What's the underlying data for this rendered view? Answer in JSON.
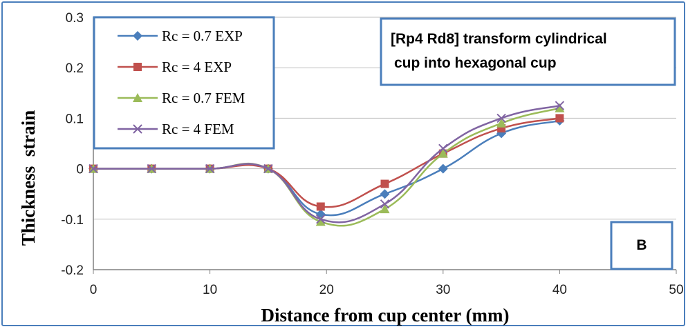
{
  "chart_data": {
    "type": "line",
    "title": "",
    "xlabel": "Distance from cup center (mm)",
    "ylabel": "Thickness  strain",
    "xlim": [
      0,
      50
    ],
    "ylim": [
      -0.2,
      0.3
    ],
    "xticks": [
      "0",
      "10",
      "20",
      "30",
      "40",
      "50"
    ],
    "yticks": [
      "-0.2",
      "-0.1",
      "0",
      "0.1",
      "0.2",
      "0.3"
    ],
    "grid": true,
    "legend_position": "top-left",
    "series": [
      {
        "name": "Rc = 0.7 EXP",
        "color": "#4a7ebb",
        "marker": "diamond",
        "x": [
          0,
          5,
          10,
          15,
          19.5,
          25,
          30,
          35,
          40
        ],
        "y": [
          0,
          0,
          0,
          0,
          -0.09,
          -0.05,
          0,
          0.07,
          0.095
        ]
      },
      {
        "name": "Rc = 4 EXP",
        "color": "#c0504d",
        "marker": "square",
        "x": [
          0,
          5,
          10,
          15,
          19.5,
          25,
          30,
          35,
          40
        ],
        "y": [
          0,
          0,
          0,
          0,
          -0.075,
          -0.03,
          0.03,
          0.08,
          0.1
        ]
      },
      {
        "name": "Rc = 0.7 FEM",
        "color": "#9bbb59",
        "marker": "triangle",
        "x": [
          0,
          5,
          10,
          15,
          19.5,
          25,
          30,
          35,
          40
        ],
        "y": [
          0,
          0,
          0,
          0,
          -0.105,
          -0.08,
          0.03,
          0.09,
          0.12
        ]
      },
      {
        "name": "Rc = 4 FEM",
        "color": "#8064a2",
        "marker": "x",
        "x": [
          0,
          5,
          10,
          15,
          19.5,
          25,
          30,
          35,
          40
        ],
        "y": [
          0,
          0,
          0,
          0,
          -0.1,
          -0.07,
          0.04,
          0.1,
          0.125
        ]
      }
    ],
    "annotations": [
      {
        "id": "caption",
        "text_lines": [
          "[Rp4 Rd8] transform cylindrical",
          "cup into hexagonal cup"
        ]
      },
      {
        "id": "panel",
        "text": "B"
      }
    ]
  }
}
